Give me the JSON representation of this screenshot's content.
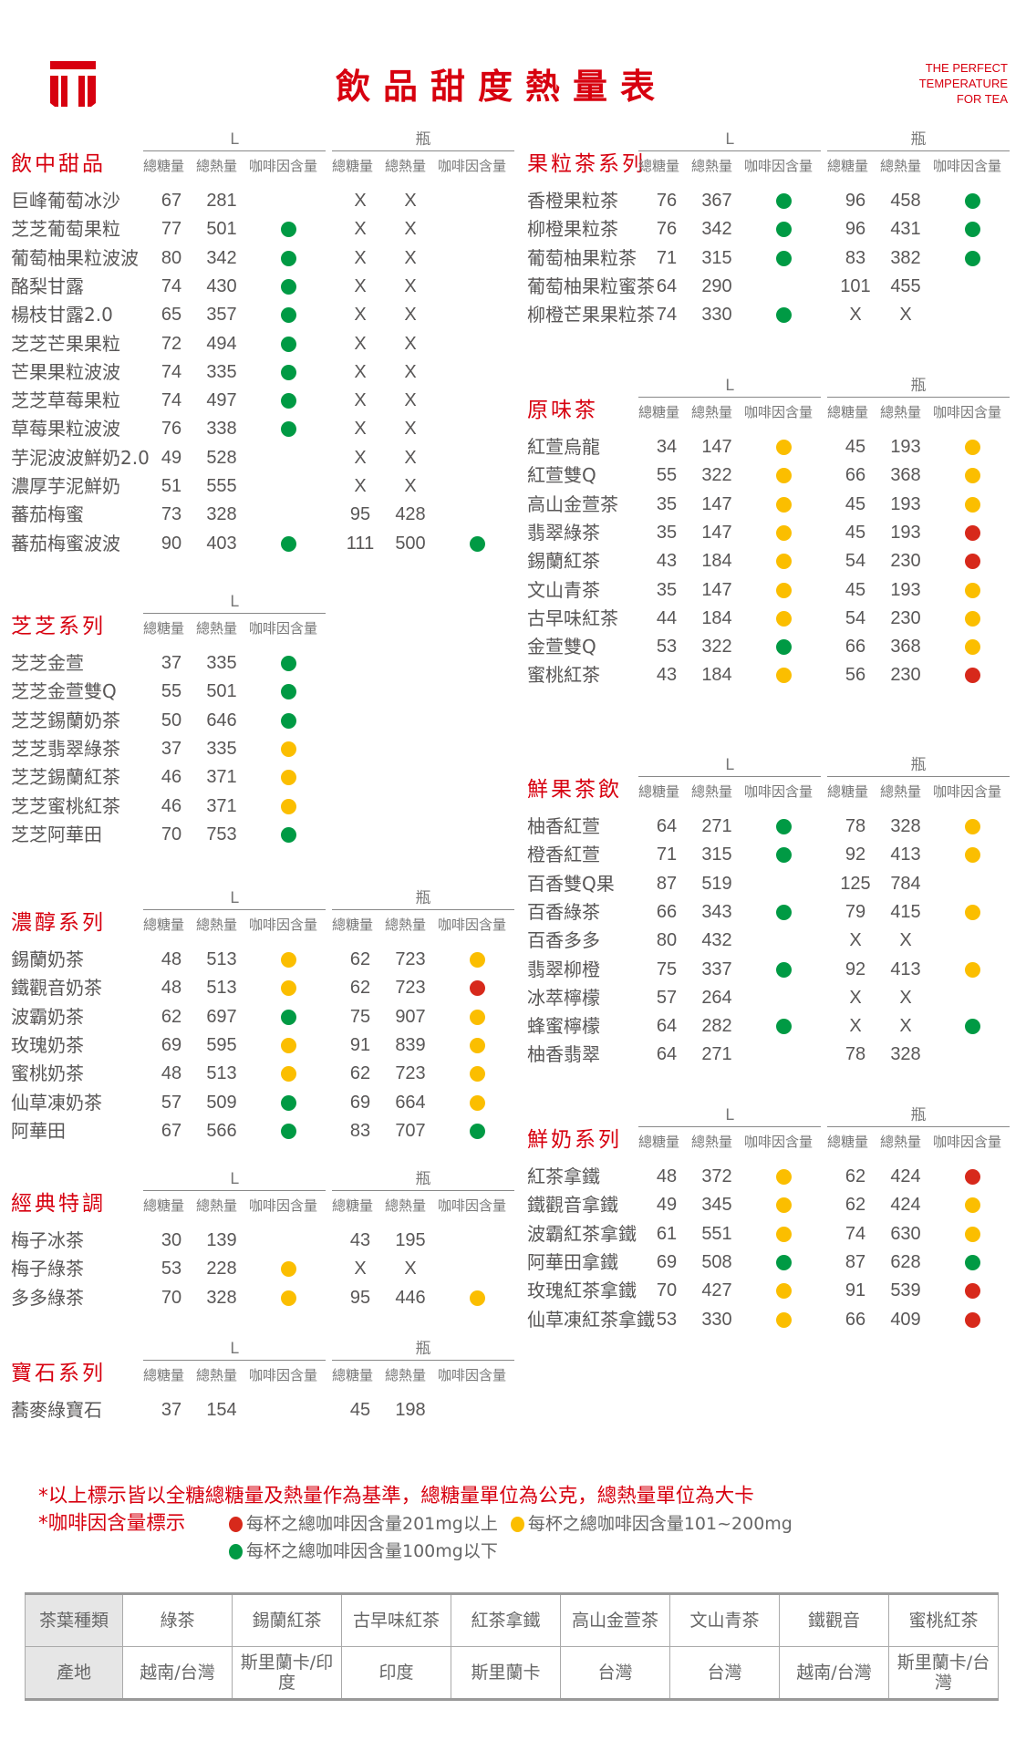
{
  "header": {
    "title": "飲品甜度熱量表",
    "tagline": [
      "THE PERFECT",
      "TEMPERATURE",
      "FOR TEA"
    ],
    "brand_color": "#d7000f"
  },
  "column_headers": {
    "large": "L",
    "bottle": "瓶",
    "sugar": "總糖量",
    "calories": "總熱量",
    "caffeine": "咖啡因含量"
  },
  "caffeine_colors": {
    "green": "#009a44",
    "yellow": "#fbbe00",
    "red": "#d7291b"
  },
  "sections": [
    {
      "title": "飲中甜品",
      "has_bottle": true,
      "rows": [
        {
          "name": "巨峰葡萄冰沙",
          "L": [
            "67",
            "281",
            null
          ],
          "B": [
            "X",
            "X",
            null
          ]
        },
        {
          "name": "芝芝葡萄果粒",
          "L": [
            "77",
            "501",
            "green"
          ],
          "B": [
            "X",
            "X",
            null
          ]
        },
        {
          "name": "葡萄柚果粒波波",
          "L": [
            "80",
            "342",
            "green"
          ],
          "B": [
            "X",
            "X",
            null
          ]
        },
        {
          "name": "酪梨甘露",
          "L": [
            "74",
            "430",
            "green"
          ],
          "B": [
            "X",
            "X",
            null
          ]
        },
        {
          "name": "楊枝甘露2.0",
          "L": [
            "65",
            "357",
            "green"
          ],
          "B": [
            "X",
            "X",
            null
          ]
        },
        {
          "name": "芝芝芒果果粒",
          "L": [
            "72",
            "494",
            "green"
          ],
          "B": [
            "X",
            "X",
            null
          ]
        },
        {
          "name": "芒果果粒波波",
          "L": [
            "74",
            "335",
            "green"
          ],
          "B": [
            "X",
            "X",
            null
          ]
        },
        {
          "name": "芝芝草莓果粒",
          "L": [
            "74",
            "497",
            "green"
          ],
          "B": [
            "X",
            "X",
            null
          ]
        },
        {
          "name": "草莓果粒波波",
          "L": [
            "76",
            "338",
            "green"
          ],
          "B": [
            "X",
            "X",
            null
          ]
        },
        {
          "name": "芋泥波波鮮奶2.0",
          "L": [
            "49",
            "528",
            null
          ],
          "B": [
            "X",
            "X",
            null
          ]
        },
        {
          "name": "濃厚芋泥鮮奶",
          "L": [
            "51",
            "555",
            null
          ],
          "B": [
            "X",
            "X",
            null
          ]
        },
        {
          "name": "蕃茄梅蜜",
          "L": [
            "73",
            "328",
            null
          ],
          "B": [
            "95",
            "428",
            null
          ]
        },
        {
          "name": "蕃茄梅蜜波波",
          "L": [
            "90",
            "403",
            "green"
          ],
          "B": [
            "111",
            "500",
            "green"
          ]
        }
      ]
    },
    {
      "title": "芝芝系列",
      "has_bottle": false,
      "rows": [
        {
          "name": "芝芝金萱",
          "L": [
            "37",
            "335",
            "green"
          ]
        },
        {
          "name": "芝芝金萱雙Q",
          "L": [
            "55",
            "501",
            "green"
          ]
        },
        {
          "name": "芝芝錫蘭奶茶",
          "L": [
            "50",
            "646",
            "green"
          ]
        },
        {
          "name": "芝芝翡翠綠茶",
          "L": [
            "37",
            "335",
            "yellow"
          ]
        },
        {
          "name": "芝芝錫蘭紅茶",
          "L": [
            "46",
            "371",
            "yellow"
          ]
        },
        {
          "name": "芝芝蜜桃紅茶",
          "L": [
            "46",
            "371",
            "yellow"
          ]
        },
        {
          "name": "芝芝阿華田",
          "L": [
            "70",
            "753",
            "green"
          ]
        }
      ]
    },
    {
      "title": "濃醇系列",
      "has_bottle": true,
      "rows": [
        {
          "name": "錫蘭奶茶",
          "L": [
            "48",
            "513",
            "yellow"
          ],
          "B": [
            "62",
            "723",
            "yellow"
          ]
        },
        {
          "name": "鐵觀音奶茶",
          "L": [
            "48",
            "513",
            "yellow"
          ],
          "B": [
            "62",
            "723",
            "red"
          ]
        },
        {
          "name": "波霸奶茶",
          "L": [
            "62",
            "697",
            "green"
          ],
          "B": [
            "75",
            "907",
            "yellow"
          ]
        },
        {
          "name": "玫瑰奶茶",
          "L": [
            "69",
            "595",
            "yellow"
          ],
          "B": [
            "91",
            "839",
            "yellow"
          ]
        },
        {
          "name": "蜜桃奶茶",
          "L": [
            "48",
            "513",
            "yellow"
          ],
          "B": [
            "62",
            "723",
            "yellow"
          ]
        },
        {
          "name": "仙草凍奶茶",
          "L": [
            "57",
            "509",
            "green"
          ],
          "B": [
            "69",
            "664",
            "yellow"
          ]
        },
        {
          "name": "阿華田",
          "L": [
            "67",
            "566",
            "green"
          ],
          "B": [
            "83",
            "707",
            "green"
          ]
        }
      ]
    },
    {
      "title": "經典特調",
      "has_bottle": true,
      "rows": [
        {
          "name": "梅子冰茶",
          "L": [
            "30",
            "139",
            null
          ],
          "B": [
            "43",
            "195",
            null
          ]
        },
        {
          "name": "梅子綠茶",
          "L": [
            "53",
            "228",
            "yellow"
          ],
          "B": [
            "X",
            "X",
            null
          ]
        },
        {
          "name": "多多綠茶",
          "L": [
            "70",
            "328",
            "yellow"
          ],
          "B": [
            "95",
            "446",
            "yellow"
          ]
        }
      ]
    },
    {
      "title": "寶石系列",
      "has_bottle": true,
      "rows": [
        {
          "name": "蕎麥綠寶石",
          "L": [
            "37",
            "154",
            null
          ],
          "B": [
            "45",
            "198",
            null
          ]
        }
      ]
    },
    {
      "title": "果粒茶系列",
      "has_bottle": true,
      "rows": [
        {
          "name": "香橙果粒茶",
          "L": [
            "76",
            "367",
            "green"
          ],
          "B": [
            "96",
            "458",
            "green"
          ]
        },
        {
          "name": "柳橙果粒茶",
          "L": [
            "76",
            "342",
            "green"
          ],
          "B": [
            "96",
            "431",
            "green"
          ]
        },
        {
          "name": "葡萄柚果粒茶",
          "L": [
            "71",
            "315",
            "green"
          ],
          "B": [
            "83",
            "382",
            "green"
          ]
        },
        {
          "name": "葡萄柚果粒蜜茶",
          "L": [
            "64",
            "290",
            null
          ],
          "B": [
            "101",
            "455",
            null
          ]
        },
        {
          "name": "柳橙芒果果粒茶",
          "L": [
            "74",
            "330",
            "green"
          ],
          "B": [
            "X",
            "X",
            null
          ]
        }
      ]
    },
    {
      "title": "原味茶",
      "has_bottle": true,
      "rows": [
        {
          "name": "紅萱烏龍",
          "L": [
            "34",
            "147",
            "yellow"
          ],
          "B": [
            "45",
            "193",
            "yellow"
          ]
        },
        {
          "name": "紅萱雙Q",
          "L": [
            "55",
            "322",
            "yellow"
          ],
          "B": [
            "66",
            "368",
            "yellow"
          ]
        },
        {
          "name": "高山金萱茶",
          "L": [
            "35",
            "147",
            "yellow"
          ],
          "B": [
            "45",
            "193",
            "yellow"
          ]
        },
        {
          "name": "翡翠綠茶",
          "L": [
            "35",
            "147",
            "yellow"
          ],
          "B": [
            "45",
            "193",
            "red"
          ]
        },
        {
          "name": "錫蘭紅茶",
          "L": [
            "43",
            "184",
            "yellow"
          ],
          "B": [
            "54",
            "230",
            "red"
          ]
        },
        {
          "name": "文山青茶",
          "L": [
            "35",
            "147",
            "yellow"
          ],
          "B": [
            "45",
            "193",
            "yellow"
          ]
        },
        {
          "name": "古早味紅茶",
          "L": [
            "44",
            "184",
            "yellow"
          ],
          "B": [
            "54",
            "230",
            "yellow"
          ]
        },
        {
          "name": "金萱雙Q",
          "L": [
            "53",
            "322",
            "green"
          ],
          "B": [
            "66",
            "368",
            "yellow"
          ]
        },
        {
          "name": "蜜桃紅茶",
          "L": [
            "43",
            "184",
            "yellow"
          ],
          "B": [
            "56",
            "230",
            "red"
          ]
        }
      ]
    },
    {
      "title": "鮮果茶飲",
      "has_bottle": true,
      "rows": [
        {
          "name": "柚香紅萱",
          "L": [
            "64",
            "271",
            "green"
          ],
          "B": [
            "78",
            "328",
            "yellow"
          ]
        },
        {
          "name": "橙香紅萱",
          "L": [
            "71",
            "315",
            "green"
          ],
          "B": [
            "92",
            "413",
            "yellow"
          ]
        },
        {
          "name": "百香雙Q果",
          "L": [
            "87",
            "519",
            null
          ],
          "B": [
            "125",
            "784",
            null
          ]
        },
        {
          "name": "百香綠茶",
          "L": [
            "66",
            "343",
            "green"
          ],
          "B": [
            "79",
            "415",
            "yellow"
          ]
        },
        {
          "name": "百香多多",
          "L": [
            "80",
            "432",
            null
          ],
          "B": [
            "X",
            "X",
            null
          ]
        },
        {
          "name": "翡翠柳橙",
          "L": [
            "75",
            "337",
            "green"
          ],
          "B": [
            "92",
            "413",
            "yellow"
          ]
        },
        {
          "name": "冰萃檸檬",
          "L": [
            "57",
            "264",
            null
          ],
          "B": [
            "X",
            "X",
            null
          ]
        },
        {
          "name": "蜂蜜檸檬",
          "L": [
            "64",
            "282",
            "green"
          ],
          "B": [
            "X",
            "X",
            "green"
          ]
        },
        {
          "name": "柚香翡翠",
          "L": [
            "64",
            "271",
            null
          ],
          "B": [
            "78",
            "328",
            null
          ]
        }
      ]
    },
    {
      "title": "鮮奶系列",
      "has_bottle": true,
      "rows": [
        {
          "name": "紅茶拿鐵",
          "L": [
            "48",
            "372",
            "yellow"
          ],
          "B": [
            "62",
            "424",
            "red"
          ]
        },
        {
          "name": "鐵觀音拿鐵",
          "L": [
            "49",
            "345",
            "yellow"
          ],
          "B": [
            "62",
            "424",
            "yellow"
          ]
        },
        {
          "name": "波霸紅茶拿鐵",
          "L": [
            "61",
            "551",
            "yellow"
          ],
          "B": [
            "74",
            "630",
            "yellow"
          ]
        },
        {
          "name": "阿華田拿鐵",
          "L": [
            "69",
            "508",
            "green"
          ],
          "B": [
            "87",
            "628",
            "green"
          ]
        },
        {
          "name": "玫瑰紅茶拿鐵",
          "L": [
            "70",
            "427",
            "yellow"
          ],
          "B": [
            "91",
            "539",
            "red"
          ]
        },
        {
          "name": "仙草凍紅茶拿鐵",
          "L": [
            "53",
            "330",
            "yellow"
          ],
          "B": [
            "66",
            "409",
            "red"
          ]
        }
      ]
    }
  ],
  "notes": {
    "basis": "*以上標示皆以全糖總糖量及熱量作為基準，總糖量單位為公克，總熱量單位為大卡",
    "caffeine_label": "*咖啡因含量標示",
    "legend": [
      {
        "color": "red",
        "text": "每杯之總咖啡因含量201mg以上"
      },
      {
        "color": "yellow",
        "text": "每杯之總咖啡因含量101~200mg"
      },
      {
        "color": "green",
        "text": "每杯之總咖啡因含量100mg以下"
      }
    ]
  },
  "origin_table": {
    "rows": [
      [
        "茶葉種類",
        "綠茶",
        "錫蘭紅茶",
        "古早味紅茶",
        "紅茶拿鐵",
        "高山金萱茶",
        "文山青茶",
        "鐵觀音",
        "蜜桃紅茶"
      ],
      [
        "產地",
        "越南/台灣",
        "斯里蘭卡/印度",
        "印度",
        "斯里蘭卡",
        "台灣",
        "台灣",
        "越南/台灣",
        "斯里蘭卡/台灣"
      ]
    ]
  }
}
